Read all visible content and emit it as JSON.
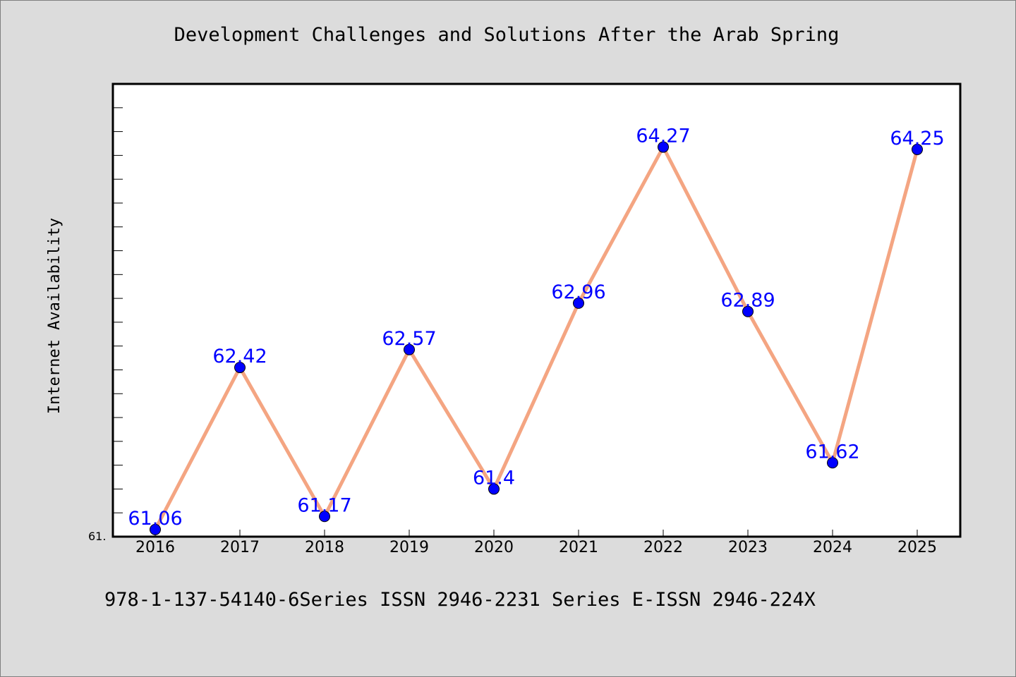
{
  "chart_data": {
    "type": "line",
    "title": "Development Challenges and Solutions After the Arab Spring",
    "ylabel": "Internet Availability",
    "xlabel": "",
    "categories": [
      "2016",
      "2017",
      "2018",
      "2019",
      "2020",
      "2021",
      "2022",
      "2023",
      "2024",
      "2025"
    ],
    "values": [
      61.06,
      62.42,
      61.17,
      62.57,
      61.4,
      62.96,
      64.27,
      62.89,
      61.62,
      64.25
    ],
    "data_labels": [
      "61.06",
      "62.42",
      "61.17",
      "62.57",
      "61.4",
      "62.96",
      "64.27",
      "62.89",
      "61.62",
      "64.25"
    ],
    "ylim": [
      61.0,
      64.8
    ],
    "y_tick_label_visible": "61.",
    "line_color": "#f4a582",
    "marker_color": "#0000ff",
    "label_color": "#0000ff",
    "grid": false
  },
  "footer": "978-1-137-54140-6Series ISSN 2946-2231 Series E-ISSN 2946-224X"
}
